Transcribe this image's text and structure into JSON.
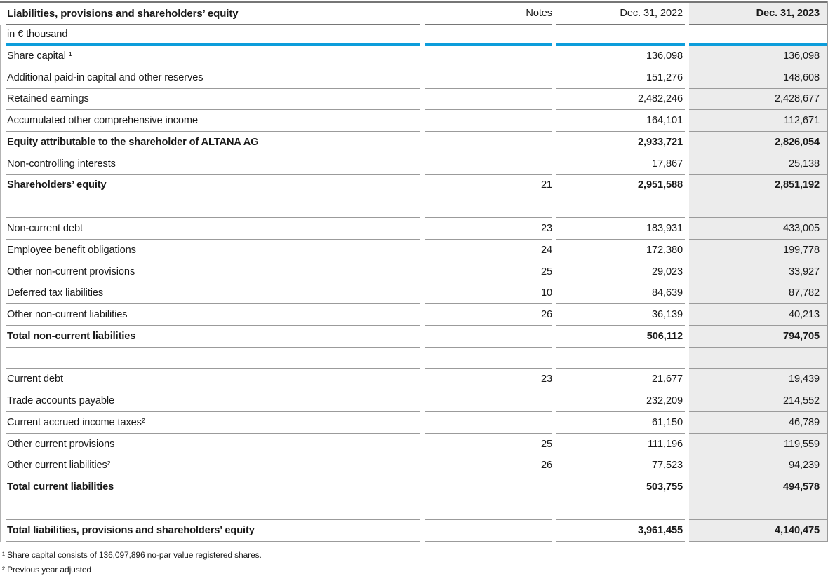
{
  "table": {
    "title": "Liabilities, provisions and shareholders’ equity",
    "unit": "in € thousand",
    "columns": [
      "Notes",
      "Dec. 31, 2022",
      "Dec. 31, 2023"
    ],
    "rows": [
      {
        "label": "Share capital ¹",
        "notes": "",
        "y2022": "136,098",
        "y2023": "136,098",
        "bold": false
      },
      {
        "label": "Additional paid-in capital and other reserves",
        "notes": "",
        "y2022": "151,276",
        "y2023": "148,608",
        "bold": false
      },
      {
        "label": "Retained earnings",
        "notes": "",
        "y2022": "2,482,246",
        "y2023": "2,428,677",
        "bold": false
      },
      {
        "label": "Accumulated other comprehensive income",
        "notes": "",
        "y2022": "164,101",
        "y2023": "112,671",
        "bold": false
      },
      {
        "label": "Equity attributable to the shareholder of ALTANA AG",
        "notes": "",
        "y2022": "2,933,721",
        "y2023": "2,826,054",
        "bold": true
      },
      {
        "label": "Non-controlling interests",
        "notes": "",
        "y2022": "17,867",
        "y2023": "25,138",
        "bold": false
      },
      {
        "label": "Shareholders’ equity",
        "notes": "21",
        "y2022": "2,951,588",
        "y2023": "2,851,192",
        "bold": true
      },
      {
        "spacer": true
      },
      {
        "label": "Non-current debt",
        "notes": "23",
        "y2022": "183,931",
        "y2023": "433,005",
        "bold": false
      },
      {
        "label": "Employee benefit obligations",
        "notes": "24",
        "y2022": "172,380",
        "y2023": "199,778",
        "bold": false
      },
      {
        "label": "Other non-current provisions",
        "notes": "25",
        "y2022": "29,023",
        "y2023": "33,927",
        "bold": false
      },
      {
        "label": "Deferred tax liabilities",
        "notes": "10",
        "y2022": "84,639",
        "y2023": "87,782",
        "bold": false
      },
      {
        "label": "Other non-current liabilities",
        "notes": "26",
        "y2022": "36,139",
        "y2023": "40,213",
        "bold": false
      },
      {
        "label": "Total non-current liabilities",
        "notes": "",
        "y2022": "506,112",
        "y2023": "794,705",
        "bold": true
      },
      {
        "spacer": true
      },
      {
        "label": "Current debt",
        "notes": "23",
        "y2022": "21,677",
        "y2023": "19,439",
        "bold": false
      },
      {
        "label": "Trade accounts payable",
        "notes": "",
        "y2022": "232,209",
        "y2023": "214,552",
        "bold": false
      },
      {
        "label": "Current accrued income taxes²",
        "notes": "",
        "y2022": "61,150",
        "y2023": "46,789",
        "bold": false
      },
      {
        "label": "Other current provisions",
        "notes": "25",
        "y2022": "111,196",
        "y2023": "119,559",
        "bold": false
      },
      {
        "label": "Other current liabilities²",
        "notes": "26",
        "y2022": "77,523",
        "y2023": "94,239",
        "bold": false
      },
      {
        "label": "Total current liabilities",
        "notes": "",
        "y2022": "503,755",
        "y2023": "494,578",
        "bold": true
      },
      {
        "spacer": true
      },
      {
        "label": "Total liabilities, provisions and shareholders’ equity",
        "notes": "",
        "y2022": "3,961,455",
        "y2023": "4,140,475",
        "bold": true
      }
    ],
    "footnotes": [
      "¹ Share capital consists of 136,097,896 no-par value registered shares.",
      "² Previous year adjusted"
    ]
  },
  "colors": {
    "accent_blue": "#0c9ddb",
    "highlight_column_bg": "#ececec"
  }
}
